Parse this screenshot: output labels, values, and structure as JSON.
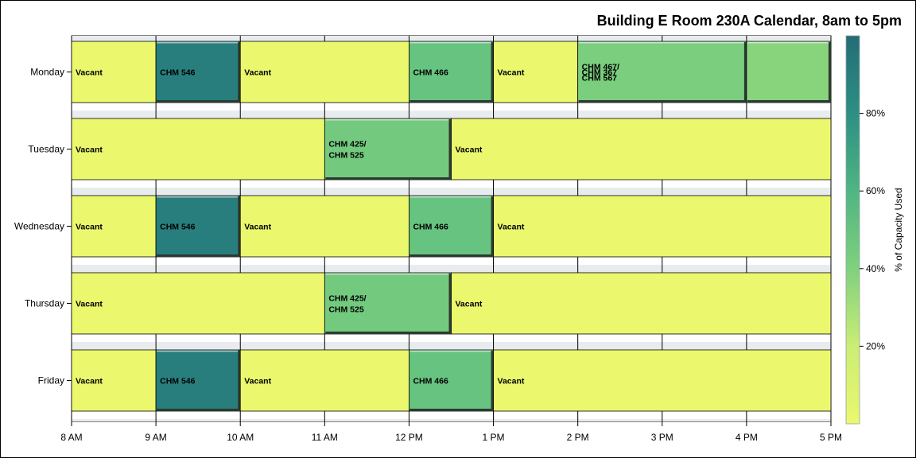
{
  "chart_data": {
    "type": "bar",
    "title": "Building E Room 230A Calendar, 8am to 5pm",
    "x_tick_labels": [
      "8 AM",
      "9 AM",
      "10 AM",
      "11 AM",
      "12 PM",
      "1 PM",
      "2 PM",
      "3 PM",
      "4 PM",
      "5 PM"
    ],
    "xlim": [
      8,
      17
    ],
    "days": [
      {
        "name": "Monday",
        "bars": [
          {
            "start": 8,
            "end": 9,
            "label": "Vacant",
            "capacity": 0
          },
          {
            "start": 9,
            "end": 10,
            "label": "CHM 546",
            "capacity": 90
          },
          {
            "start": 10,
            "end": 12,
            "label": "Vacant",
            "capacity": 0
          },
          {
            "start": 12,
            "end": 13,
            "label": "CHM 466",
            "capacity": 50
          },
          {
            "start": 13,
            "end": 14,
            "label": "Vacant",
            "capacity": 0
          },
          {
            "start": 14,
            "end": 16,
            "label": "CHM 467/\nCHM 367\nCHM 567",
            "capacity": 42
          },
          {
            "start": 16,
            "end": 17,
            "label": "",
            "capacity": 38
          }
        ]
      },
      {
        "name": "Tuesday",
        "bars": [
          {
            "start": 8,
            "end": 11,
            "label": "Vacant",
            "capacity": 0
          },
          {
            "start": 11,
            "end": 12.5,
            "label": "CHM 425/\nCHM 525",
            "capacity": 45
          },
          {
            "start": 12.5,
            "end": 17,
            "label": "Vacant",
            "capacity": 0
          }
        ]
      },
      {
        "name": "Wednesday",
        "bars": [
          {
            "start": 8,
            "end": 9,
            "label": "Vacant",
            "capacity": 0
          },
          {
            "start": 9,
            "end": 10,
            "label": "CHM 546",
            "capacity": 90
          },
          {
            "start": 10,
            "end": 12,
            "label": "Vacant",
            "capacity": 0
          },
          {
            "start": 12,
            "end": 13,
            "label": "CHM 466",
            "capacity": 50
          },
          {
            "start": 13,
            "end": 17,
            "label": "Vacant",
            "capacity": 0
          }
        ]
      },
      {
        "name": "Thursday",
        "bars": [
          {
            "start": 8,
            "end": 11,
            "label": "Vacant",
            "capacity": 0
          },
          {
            "start": 11,
            "end": 12.5,
            "label": "CHM 425/\nCHM 525",
            "capacity": 45
          },
          {
            "start": 12.5,
            "end": 17,
            "label": "Vacant",
            "capacity": 0
          }
        ]
      },
      {
        "name": "Friday",
        "bars": [
          {
            "start": 8,
            "end": 9,
            "label": "Vacant",
            "capacity": 0
          },
          {
            "start": 9,
            "end": 10,
            "label": "CHM 546",
            "capacity": 90
          },
          {
            "start": 10,
            "end": 12,
            "label": "Vacant",
            "capacity": 0
          },
          {
            "start": 12,
            "end": 13,
            "label": "CHM 466",
            "capacity": 50
          },
          {
            "start": 13,
            "end": 17,
            "label": "Vacant",
            "capacity": 0
          }
        ]
      }
    ],
    "colorbar": {
      "title": "% of Capacity Used",
      "range": [
        0,
        100
      ],
      "ticks": [
        20,
        40,
        60,
        80
      ],
      "tick_labels": [
        "20%",
        "40%",
        "60%",
        "80%"
      ],
      "color_stops": [
        "#ebf86e",
        "#cbed74",
        "#7fd17e",
        "#4fb582",
        "#2d8f84",
        "#236d76"
      ]
    },
    "grid": true,
    "legend_position": "right"
  }
}
